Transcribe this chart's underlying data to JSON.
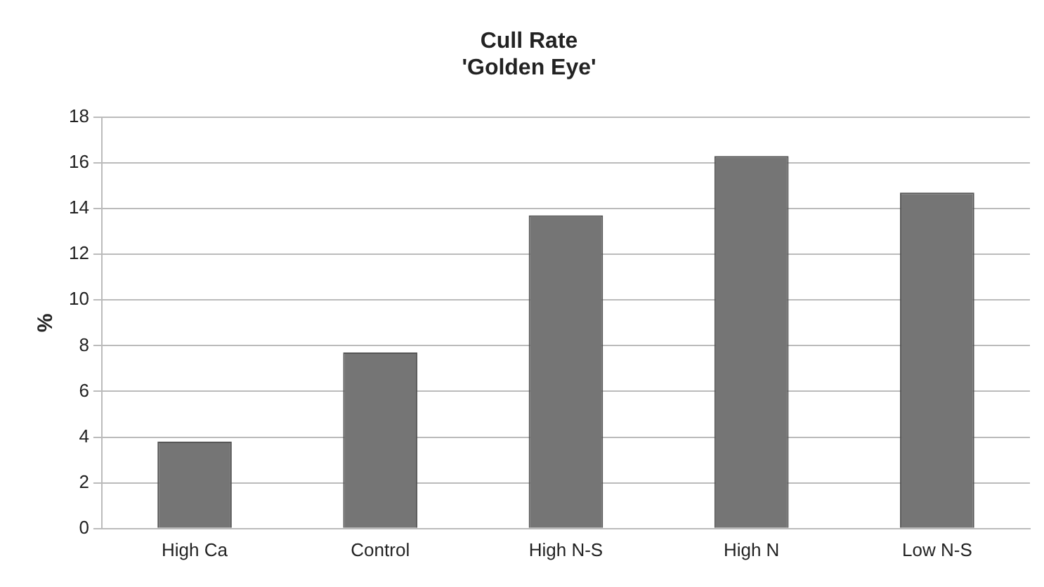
{
  "chart_data": {
    "type": "bar",
    "title": "Cull Rate\n'Golden Eye'",
    "ylabel": "%",
    "categories": [
      "High Ca",
      "Control",
      "High N-S",
      "High N",
      "Low N-S"
    ],
    "values": [
      3.8,
      7.7,
      13.7,
      16.3,
      14.7
    ],
    "color": "#757575",
    "ylim": [
      0,
      18
    ],
    "yticks": [
      0,
      2,
      4,
      6,
      8,
      10,
      12,
      14,
      16,
      18
    ],
    "grid": "y"
  }
}
